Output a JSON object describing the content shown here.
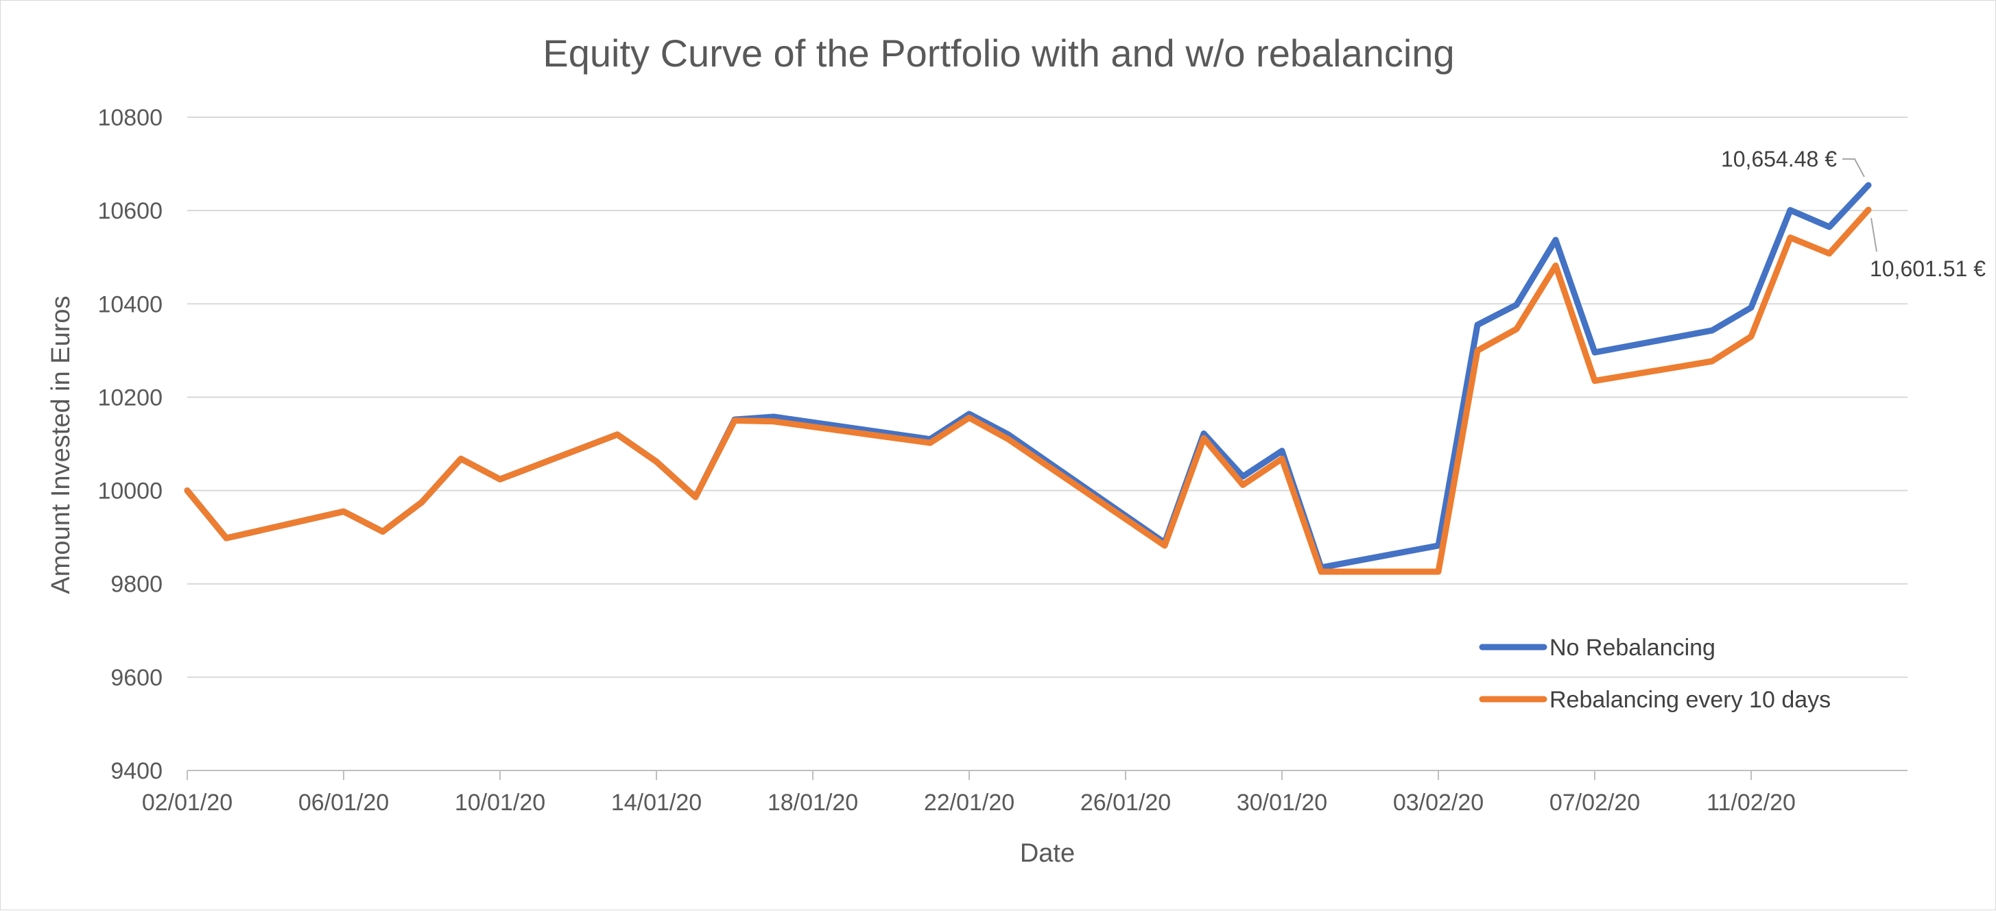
{
  "chart_data": {
    "type": "line",
    "title": "Equity Curve of the Portfolio with and w/o rebalancing",
    "xlabel": "Date",
    "ylabel": "Amount Invested in Euros",
    "ylim": [
      9400,
      10800
    ],
    "yticks": [
      9400,
      9600,
      9800,
      10000,
      10200,
      10400,
      10600,
      10800
    ],
    "xlim": [
      "02/01/20",
      "15/02/20"
    ],
    "xticks": [
      "02/01/20",
      "06/01/20",
      "10/01/20",
      "14/01/20",
      "18/01/20",
      "22/01/20",
      "26/01/20",
      "30/01/20",
      "03/02/20",
      "07/02/20",
      "11/02/20"
    ],
    "grid": "horizontal",
    "legend_position": "bottom-right",
    "series": [
      {
        "name": "No Rebalancing",
        "color": "#4472C4",
        "points": [
          [
            "02/01/20",
            10000
          ],
          [
            "03/01/20",
            9898
          ],
          [
            "06/01/20",
            9955
          ],
          [
            "07/01/20",
            9912
          ],
          [
            "08/01/20",
            9975
          ],
          [
            "09/01/20",
            10068
          ],
          [
            "10/01/20",
            10024
          ],
          [
            "13/01/20",
            10120
          ],
          [
            "14/01/20",
            10062
          ],
          [
            "15/01/20",
            9986
          ],
          [
            "16/01/20",
            10152
          ],
          [
            "17/01/20",
            10158
          ],
          [
            "21/01/20",
            10110
          ],
          [
            "22/01/20",
            10164
          ],
          [
            "23/01/20",
            10120
          ],
          [
            "27/01/20",
            9888
          ],
          [
            "28/01/20",
            10122
          ],
          [
            "29/01/20",
            10030
          ],
          [
            "30/01/20",
            10085
          ],
          [
            "31/01/20",
            9835
          ],
          [
            "03/02/20",
            9882
          ],
          [
            "04/02/20",
            10355
          ],
          [
            "05/02/20",
            10398
          ],
          [
            "06/02/20",
            10537
          ],
          [
            "07/02/20",
            10296
          ],
          [
            "10/02/20",
            10343
          ],
          [
            "11/02/20",
            10392
          ],
          [
            "12/02/20",
            10601
          ],
          [
            "13/02/20",
            10565
          ],
          [
            "14/02/20",
            10654.48
          ]
        ]
      },
      {
        "name": "Rebalancing every 10 days",
        "color": "#ED7D31",
        "points": [
          [
            "02/01/20",
            10000
          ],
          [
            "03/01/20",
            9898
          ],
          [
            "06/01/20",
            9955
          ],
          [
            "07/01/20",
            9912
          ],
          [
            "08/01/20",
            9975
          ],
          [
            "09/01/20",
            10068
          ],
          [
            "10/01/20",
            10024
          ],
          [
            "13/01/20",
            10120
          ],
          [
            "14/01/20",
            10062
          ],
          [
            "15/01/20",
            9986
          ],
          [
            "16/01/20",
            10150
          ],
          [
            "17/01/20",
            10148
          ],
          [
            "21/01/20",
            10102
          ],
          [
            "22/01/20",
            10156
          ],
          [
            "23/01/20",
            10110
          ],
          [
            "27/01/20",
            9882
          ],
          [
            "28/01/20",
            10112
          ],
          [
            "29/01/20",
            10012
          ],
          [
            "30/01/20",
            10068
          ],
          [
            "31/01/20",
            9826
          ],
          [
            "03/02/20",
            9826
          ],
          [
            "04/02/20",
            10300
          ],
          [
            "05/02/20",
            10346
          ],
          [
            "06/02/20",
            10482
          ],
          [
            "07/02/20",
            10235
          ],
          [
            "10/02/20",
            10277
          ],
          [
            "11/02/20",
            10330
          ],
          [
            "12/02/20",
            10542
          ],
          [
            "13/02/20",
            10508
          ],
          [
            "14/02/20",
            10601.51
          ]
        ]
      }
    ],
    "annotations": [
      {
        "series": 0,
        "text": "10,654.48 €"
      },
      {
        "series": 1,
        "text": "10,601.51 €"
      }
    ]
  }
}
